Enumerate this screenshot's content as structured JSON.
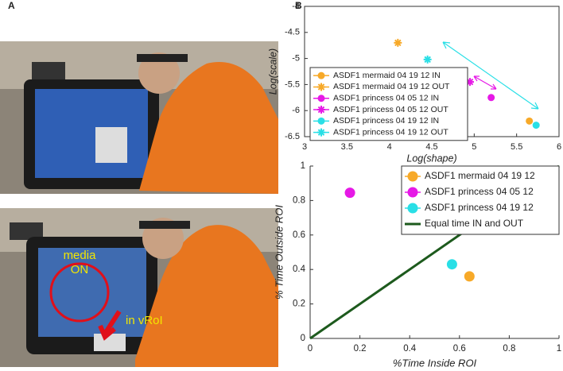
{
  "panel_labels": [
    "A",
    "B"
  ],
  "photo_annotations": [
    "media",
    "ON",
    "in vRoI"
  ],
  "chart_data": [
    {
      "type": "scatter",
      "xlabel": "Log(shape)",
      "ylabel": "Log(scale)",
      "xlim": [
        3,
        6
      ],
      "xticks": [
        3,
        3.5,
        4,
        4.5,
        5,
        5.5,
        6
      ],
      "ylim": [
        -6.5,
        -4
      ],
      "yticks": [
        -6.5,
        -6,
        -5.5,
        -5,
        -4.5,
        -4
      ],
      "legend": "upper left",
      "series": [
        {
          "name": "ASDF1 mermaid 04 19 12 IN",
          "color": "#f7a928",
          "marker": "circle",
          "x": [
            5.65
          ],
          "values": [
            -6.2
          ]
        },
        {
          "name": "ASDF1 mermaid 04 19 12 OUT",
          "color": "#f7a928",
          "marker": "star",
          "x": [
            4.1
          ],
          "values": [
            -4.7
          ]
        },
        {
          "name": "ASDF1 princess 04 05 12 IN",
          "color": "#e619e6",
          "marker": "circle",
          "x": [
            5.2
          ],
          "values": [
            -5.75
          ]
        },
        {
          "name": "ASDF1 princess 04 05 12 OUT",
          "color": "#e619e6",
          "marker": "star",
          "x": [
            4.95
          ],
          "values": [
            -5.45
          ]
        },
        {
          "name": "ASDF1 princess 04 19 12 IN",
          "color": "#29dfe6",
          "marker": "circle",
          "x": [
            5.73
          ],
          "values": [
            -6.28
          ]
        },
        {
          "name": "ASDF1 princess 04 19 12 OUT",
          "color": "#29dfe6",
          "marker": "star",
          "x": [
            4.45
          ],
          "values": [
            -5.02
          ]
        }
      ]
    },
    {
      "type": "scatter",
      "xlabel": "%Time Inside ROI",
      "ylabel": "% Time Outside ROI",
      "xlim": [
        0,
        1
      ],
      "xticks": [
        0,
        0.2,
        0.4,
        0.6,
        0.8,
        1
      ],
      "ylim": [
        0,
        1
      ],
      "yticks": [
        0,
        0.2,
        0.4,
        0.6,
        0.8,
        1
      ],
      "legend": "upper right",
      "series": [
        {
          "name": "ASDF1 mermaid 04 19 12",
          "color": "#f7a928",
          "marker": "circle",
          "x": [
            0.64
          ],
          "values": [
            0.36
          ]
        },
        {
          "name": "ASDF1 princess 04 05 12",
          "color": "#e619e6",
          "marker": "circle",
          "x": [
            0.16
          ],
          "values": [
            0.845
          ]
        },
        {
          "name": "ASDF1 princess 04 19 12",
          "color": "#29dfe6",
          "marker": "circle",
          "x": [
            0.57
          ],
          "values": [
            0.43
          ]
        },
        {
          "name": "Equal time IN and OUT",
          "color": "#1d5a1d",
          "marker": "line",
          "x": [
            0,
            1
          ],
          "values": [
            0,
            1
          ]
        }
      ]
    }
  ]
}
